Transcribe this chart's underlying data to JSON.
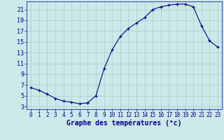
{
  "hours": [
    0,
    1,
    2,
    3,
    4,
    5,
    6,
    7,
    8,
    9,
    10,
    11,
    12,
    13,
    14,
    15,
    16,
    17,
    18,
    19,
    20,
    21,
    22,
    23
  ],
  "temperatures": [
    6.5,
    6.0,
    5.3,
    4.5,
    4.0,
    3.8,
    3.5,
    3.7,
    5.0,
    10.0,
    13.5,
    16.0,
    17.5,
    18.5,
    19.5,
    21.0,
    21.5,
    21.8,
    22.0,
    22.0,
    21.5,
    18.0,
    15.2,
    14.0
  ],
  "line_color": "#00008B",
  "marker": "+",
  "marker_color": "#00008B",
  "background_color": "#cce8e8",
  "grid_color": "#aacccc",
  "xlabel": "Graphe des températures (°c)",
  "xlabel_color": "#00008B",
  "tick_color": "#00008B",
  "ylim": [
    2.5,
    22.5
  ],
  "yticks": [
    3,
    5,
    7,
    9,
    11,
    13,
    15,
    17,
    19,
    21
  ],
  "xlim": [
    -0.5,
    23.5
  ],
  "xticks": [
    0,
    1,
    2,
    3,
    4,
    5,
    6,
    7,
    8,
    9,
    10,
    11,
    12,
    13,
    14,
    15,
    16,
    17,
    18,
    19,
    20,
    21,
    22,
    23
  ]
}
